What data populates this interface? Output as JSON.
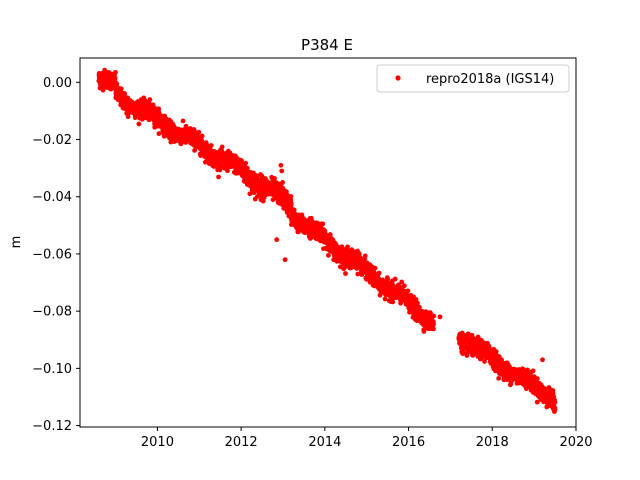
{
  "chart_data": {
    "type": "scatter",
    "title": "P384 E",
    "xlabel": "",
    "ylabel": "m",
    "xlim": [
      2008.15,
      2020.0
    ],
    "ylim": [
      -0.1205,
      0.0085
    ],
    "xticks": [
      2010,
      2012,
      2014,
      2016,
      2018,
      2020
    ],
    "yticks": [
      0.0,
      -0.02,
      -0.04,
      -0.06,
      -0.08,
      -0.1,
      -0.12
    ],
    "ytick_labels": [
      "0.00",
      "−0.02",
      "−0.04",
      "−0.06",
      "−0.08",
      "−0.10",
      "−0.12"
    ],
    "grid": false,
    "legend_position": "top-right",
    "marker_color": "#ff0000",
    "series": [
      {
        "name": "repro2018a (IGS14)",
        "marker": "circle",
        "segments": [
          {
            "x_start": 2008.6,
            "x_end": 2009.0,
            "y_start": 0.001,
            "y_end": -0.001,
            "noise": 0.0015
          },
          {
            "x_start": 2009.0,
            "x_end": 2012.0,
            "y_start": -0.004,
            "y_end": -0.031,
            "noise": 0.0015
          },
          {
            "x_start": 2012.0,
            "x_end": 2013.2,
            "y_start": -0.031,
            "y_end": -0.043,
            "noise": 0.0018
          },
          {
            "x_start": 2013.2,
            "x_end": 2016.6,
            "y_start": -0.046,
            "y_end": -0.084,
            "noise": 0.0015
          },
          {
            "x_start": 2017.2,
            "x_end": 2019.5,
            "y_start": -0.089,
            "y_end": -0.111,
            "noise": 0.0015
          }
        ],
        "outliers": [
          {
            "x": 2009.3,
            "y": -0.012
          },
          {
            "x": 2012.95,
            "y": -0.029
          },
          {
            "x": 2012.97,
            "y": -0.031
          },
          {
            "x": 2012.99,
            "y": -0.035
          },
          {
            "x": 2013.05,
            "y": -0.062
          },
          {
            "x": 2012.85,
            "y": -0.055
          },
          {
            "x": 2011.6,
            "y": -0.03
          },
          {
            "x": 2019.2,
            "y": -0.097
          },
          {
            "x": 2016.75,
            "y": -0.082
          }
        ]
      }
    ]
  }
}
